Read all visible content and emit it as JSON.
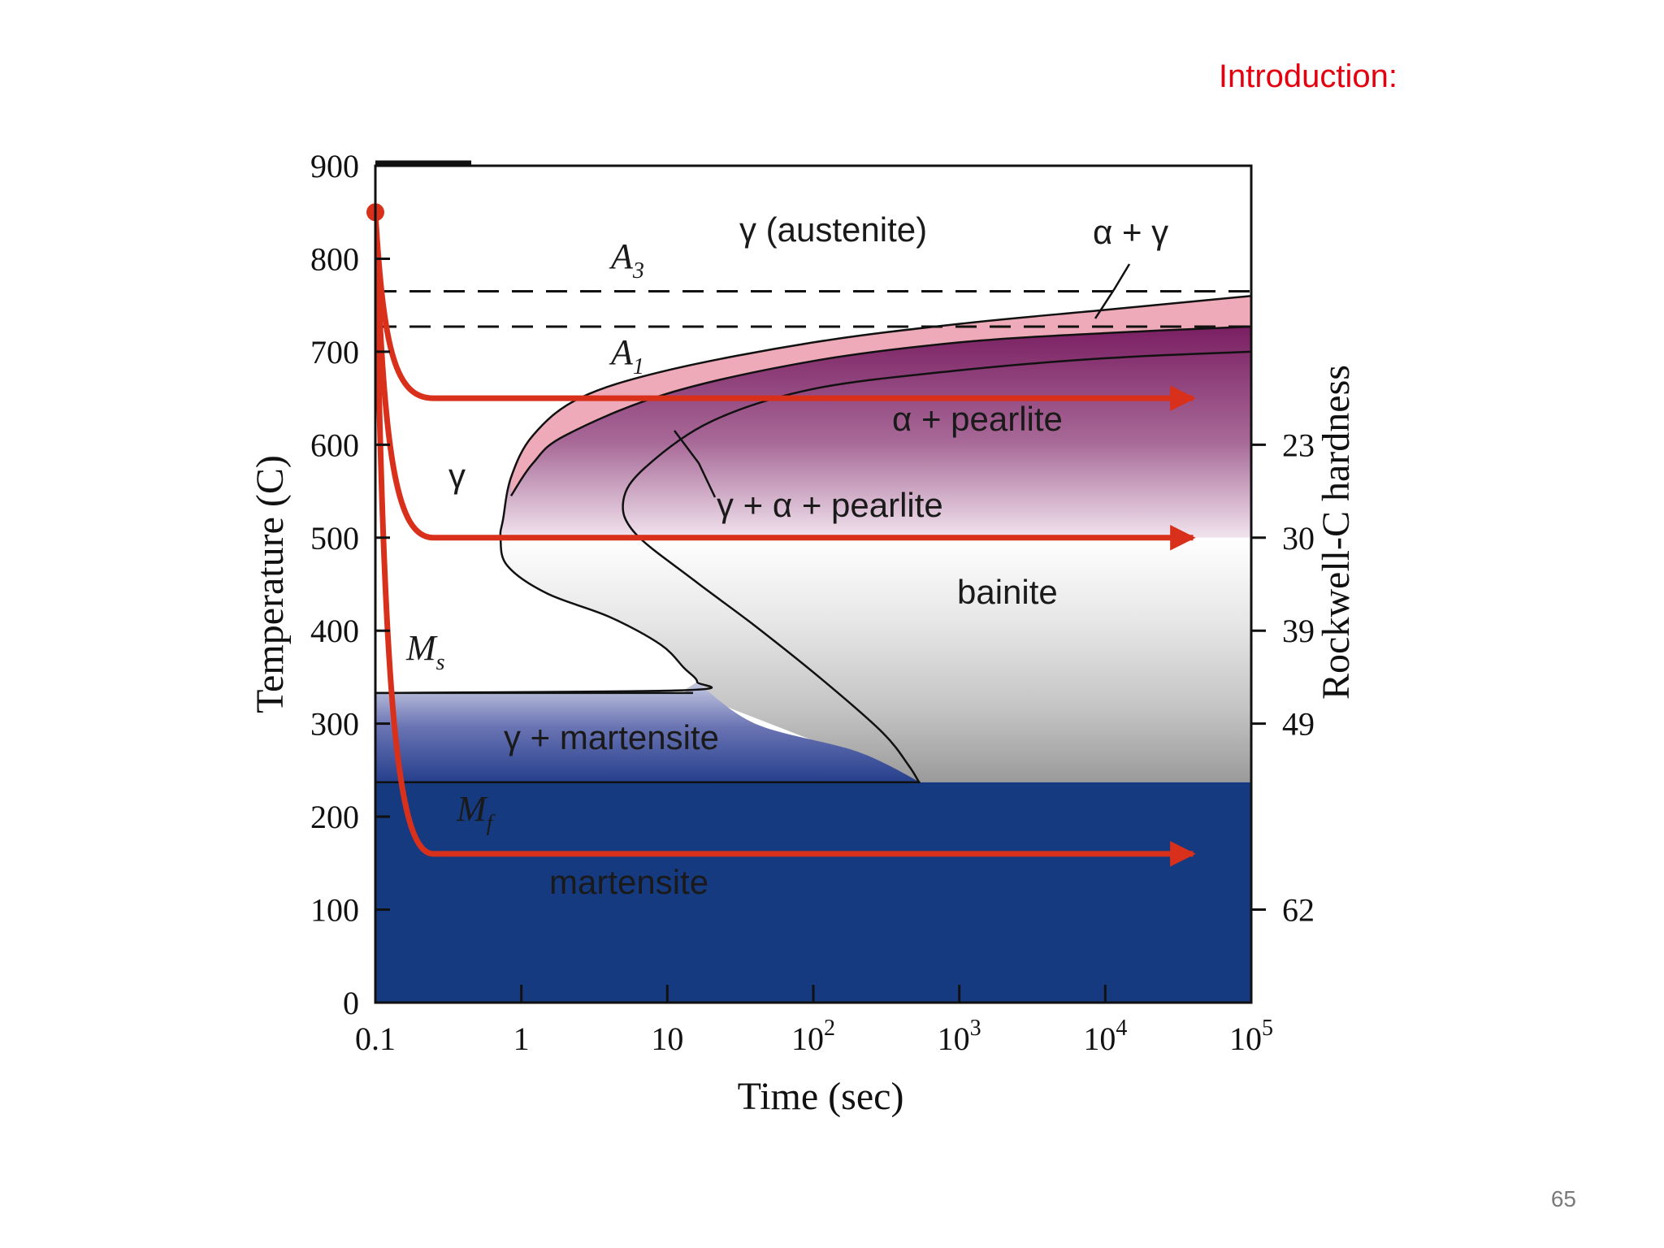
{
  "slide": {
    "title": "Introduction:",
    "page_number": "65"
  },
  "colors": {
    "title": "#e4000f",
    "cooling_path": "#d9301c",
    "martensite": "#153a80",
    "pearlite": "#9b3f7e",
    "alpha_gamma": "#eeaab8"
  },
  "chart_data": {
    "type": "area",
    "title": "",
    "xlabel": "Time (sec)",
    "ylabel": "Temperature (C)",
    "y2label": "Rockwell-C hardness",
    "x_scale": "log",
    "xlim": [
      0.1,
      100000
    ],
    "ylim": [
      0,
      900
    ],
    "x_ticks": [
      {
        "value": 0.1,
        "base": "0.1",
        "exp": ""
      },
      {
        "value": 1,
        "base": "1",
        "exp": ""
      },
      {
        "value": 10,
        "base": "10",
        "exp": ""
      },
      {
        "value": 100,
        "base": "10",
        "exp": "2"
      },
      {
        "value": 1000,
        "base": "10",
        "exp": "3"
      },
      {
        "value": 10000,
        "base": "10",
        "exp": "4"
      },
      {
        "value": 100000,
        "base": "10",
        "exp": "5"
      }
    ],
    "y_ticks": [
      0,
      100,
      200,
      300,
      400,
      500,
      600,
      700,
      800,
      900
    ],
    "hardness_ticks": [
      {
        "temp": 600,
        "label": "23"
      },
      {
        "temp": 500,
        "label": "30"
      },
      {
        "temp": 400,
        "label": "39"
      },
      {
        "temp": 300,
        "label": "49"
      },
      {
        "temp": 100,
        "label": "62"
      }
    ],
    "reference_lines": [
      {
        "name": "A3",
        "base": "A",
        "sub": "3",
        "temp": 765,
        "style": "dashed"
      },
      {
        "name": "A1",
        "base": "A",
        "sub": "1",
        "temp": 727,
        "style": "dashed"
      },
      {
        "name": "Ms",
        "base": "M",
        "sub": "s",
        "temp": 333,
        "style": "solid"
      },
      {
        "name": "Mf",
        "base": "M",
        "sub": "f",
        "temp": 237,
        "style": "solid"
      }
    ],
    "region_labels": {
      "austenite_top": "γ (austenite)",
      "alpha_gamma": "α + γ",
      "alpha_pearlite": "α + pearlite",
      "gamma_alpha_pearlite": "γ + α + pearlite",
      "gamma_left": "γ",
      "bainite": "bainite",
      "gamma_martensite": "γ + martensite",
      "martensite": "martensite"
    },
    "transformation_curves": {
      "start": [
        {
          "t": 100000,
          "T": 760
        },
        {
          "t": 10000,
          "T": 745
        },
        {
          "t": 1000,
          "T": 730
        },
        {
          "t": 100,
          "T": 710
        },
        {
          "t": 10,
          "T": 680
        },
        {
          "t": 2.5,
          "T": 650
        },
        {
          "t": 1.2,
          "T": 610
        },
        {
          "t": 0.85,
          "T": 565
        },
        {
          "t": 0.75,
          "T": 520
        },
        {
          "t": 0.72,
          "T": 500
        },
        {
          "t": 0.8,
          "T": 470
        },
        {
          "t": 1.5,
          "T": 440
        },
        {
          "t": 4,
          "T": 415
        },
        {
          "t": 9,
          "T": 385
        },
        {
          "t": 13,
          "T": 360
        },
        {
          "t": 16,
          "T": 345
        },
        {
          "t": 13,
          "T": 336
        },
        {
          "t": 0.1,
          "T": 333
        }
      ],
      "alpha_pearlite_boundary": [
        {
          "t": 100000,
          "T": 727
        },
        {
          "t": 10000,
          "T": 720
        },
        {
          "t": 1000,
          "T": 710
        },
        {
          "t": 100,
          "T": 690
        },
        {
          "t": 10,
          "T": 655
        },
        {
          "t": 2,
          "T": 610
        },
        {
          "t": 1.2,
          "T": 580
        },
        {
          "t": 0.85,
          "T": 545
        }
      ],
      "finish": [
        {
          "t": 100000,
          "T": 700
        },
        {
          "t": 10000,
          "T": 693
        },
        {
          "t": 1000,
          "T": 680
        },
        {
          "t": 100,
          "T": 660
        },
        {
          "t": 20,
          "T": 625
        },
        {
          "t": 7,
          "T": 575
        },
        {
          "t": 5,
          "T": 540
        },
        {
          "t": 6,
          "T": 505
        },
        {
          "t": 15,
          "T": 455
        },
        {
          "t": 40,
          "T": 405
        },
        {
          "t": 120,
          "T": 345
        },
        {
          "t": 300,
          "T": 290
        },
        {
          "t": 450,
          "T": 255
        },
        {
          "t": 530,
          "T": 237
        }
      ]
    },
    "cooling_paths": [
      {
        "name": "path-650",
        "start_temp": 850,
        "hold_temp": 650,
        "end_time": 40000
      },
      {
        "name": "path-500",
        "start_temp": 850,
        "hold_temp": 500,
        "end_time": 40000
      },
      {
        "name": "path-160",
        "start_temp": 850,
        "hold_temp": 160,
        "end_time": 40000
      }
    ]
  }
}
